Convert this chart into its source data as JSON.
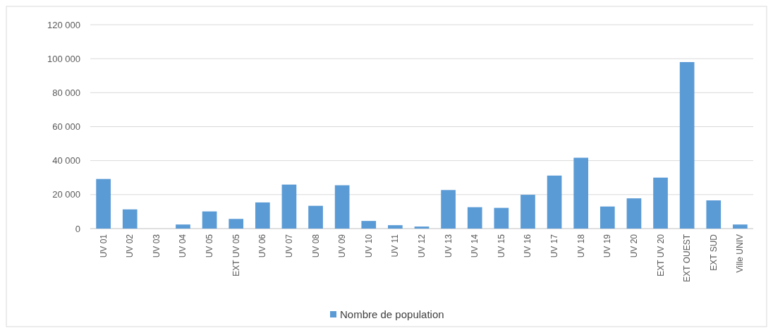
{
  "chart_data": {
    "type": "bar",
    "categories": [
      "UV 01",
      "UV 02",
      "UV 03",
      "UV 04",
      "UV 05",
      "EXT UV 05",
      "UV 06",
      "UV 07",
      "UV 08",
      "UV 09",
      "UV 10",
      "UV 11",
      "UV 12",
      "UV 13",
      "UV 14",
      "UV 15",
      "UV 16",
      "UV 17",
      "UV 18",
      "UV 19",
      "UV 20",
      "EXT UV 20",
      "EXT OUEST",
      "EXT SUD",
      "Ville UNIV"
    ],
    "series": [
      {
        "name": "Nombre de population",
        "color": "#5b9bd5",
        "values": [
          29200,
          11300,
          0,
          2400,
          10100,
          5700,
          15400,
          25900,
          13400,
          25500,
          4500,
          2000,
          1200,
          22700,
          12600,
          12200,
          19900,
          31200,
          41700,
          13000,
          17800,
          30000,
          98000,
          16600,
          2400
        ]
      }
    ],
    "ylim": [
      0,
      120000
    ],
    "yticks": [
      {
        "value": 0,
        "label": "0"
      },
      {
        "value": 20000,
        "label": "20 000"
      },
      {
        "value": 40000,
        "label": "40 000"
      },
      {
        "value": 60000,
        "label": "60 000"
      },
      {
        "value": 80000,
        "label": "80 000"
      },
      {
        "value": 100000,
        "label": "100 000"
      },
      {
        "value": 120000,
        "label": "120 000"
      }
    ],
    "grid": "y",
    "legend": "bottom"
  }
}
